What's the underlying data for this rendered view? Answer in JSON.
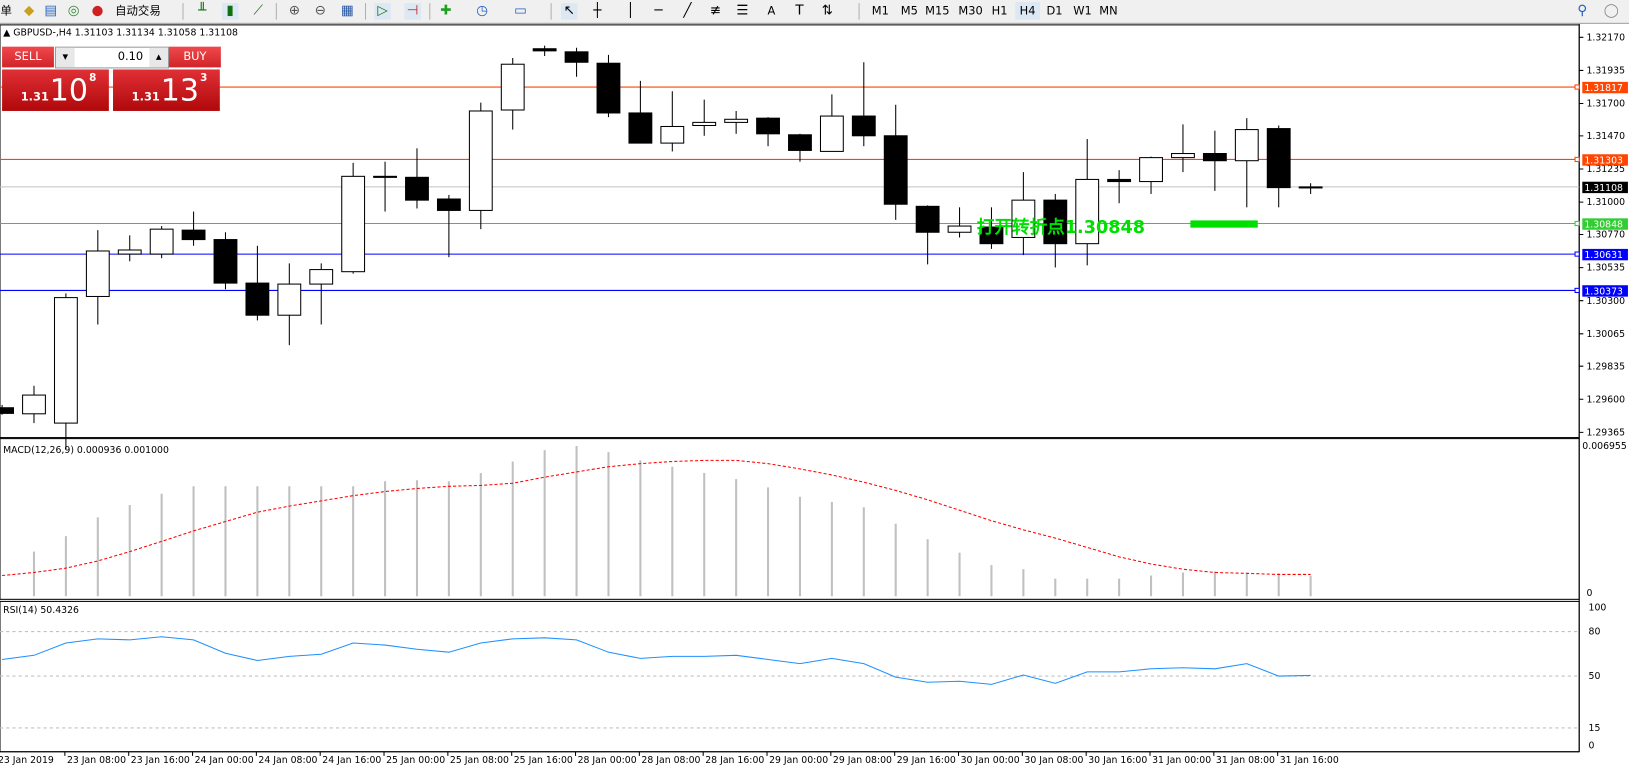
{
  "toolbar": {
    "left_cut_text": "单",
    "auto_trading": "自动交易",
    "timeframes": [
      "M1",
      "M5",
      "M15",
      "M30",
      "H1",
      "H4",
      "D1",
      "W1",
      "MN"
    ],
    "icons": [
      "profiles-icon",
      "navigator-icon",
      "signal-icon",
      "auto-trading-icon",
      "bar-chart-icon",
      "candlestick-icon",
      "line-chart-icon",
      "zoom-in-icon",
      "zoom-out-icon",
      "tile-windows-icon",
      "autoscroll-icon",
      "chart-shift-icon",
      "indicators-icon",
      "periods-icon",
      "templates-icon",
      "cursor-icon",
      "crosshair-icon",
      "vertical-line-icon",
      "horizontal-line-icon",
      "trendline-icon",
      "fibonacci-fan-icon",
      "fibonacci-icon",
      "text-icon",
      "text-label-icon",
      "arrows-icon",
      "search-icon",
      "chat-icon"
    ],
    "text_tool": "A"
  },
  "chart": {
    "symbol_header": "GBPUSD-,H4  1.31103 1.31134 1.31058 1.31108",
    "annotation": "打开转折点1.30848",
    "annotation_color": "#00e000",
    "bid_price": "1.31108"
  },
  "trade_panel": {
    "sell_label": "SELL",
    "buy_label": "BUY",
    "lot": "0.10",
    "sell_price": {
      "prefix": "1.31",
      "big": "10",
      "sup": "8"
    },
    "buy_price": {
      "prefix": "1.31",
      "big": "13",
      "sup": "3"
    }
  },
  "price_axis": {
    "ticks": [
      "1.32170",
      "1.31935",
      "1.31700",
      "1.31470",
      "1.31235",
      "1.31000",
      "1.30770",
      "1.30535",
      "1.30300",
      "1.30065",
      "1.29835",
      "1.29600",
      "1.29365"
    ]
  },
  "levels": [
    {
      "price": "1.31817",
      "color": "#ff4500"
    },
    {
      "price": "1.31303",
      "color": "#ff4500"
    },
    {
      "price": "1.30848",
      "color": "#32cd32"
    },
    {
      "price": "1.30631",
      "color": "#0000ff"
    },
    {
      "price": "1.30373",
      "color": "#0000ff"
    }
  ],
  "chart_data": [
    {
      "type": "candlestick",
      "title": "GBPUSD-,H4",
      "x": [
        "23 Jan 00:00",
        "23 Jan 04:00",
        "23 Jan 08:00",
        "23 Jan 12:00",
        "23 Jan 16:00",
        "23 Jan 20:00",
        "24 Jan 00:00",
        "24 Jan 04:00",
        "24 Jan 08:00",
        "24 Jan 12:00",
        "24 Jan 16:00",
        "24 Jan 20:00",
        "25 Jan 00:00",
        "25 Jan 04:00",
        "25 Jan 08:00",
        "25 Jan 12:00",
        "25 Jan 16:00",
        "25 Jan 20:00",
        "28 Jan 00:00",
        "28 Jan 04:00",
        "28 Jan 08:00",
        "28 Jan 12:00",
        "28 Jan 16:00",
        "28 Jan 20:00",
        "29 Jan 00:00",
        "29 Jan 04:00",
        "29 Jan 08:00",
        "29 Jan 12:00",
        "29 Jan 16:00",
        "29 Jan 20:00",
        "30 Jan 00:00",
        "30 Jan 04:00",
        "30 Jan 08:00",
        "30 Jan 12:00",
        "30 Jan 16:00",
        "30 Jan 20:00",
        "31 Jan 00:00",
        "31 Jan 04:00",
        "31 Jan 08:00",
        "31 Jan 12:00",
        "31 Jan 16:00",
        "31 Jan 20:00"
      ],
      "ohlc": [
        [
          1.2954,
          1.2956,
          1.2949,
          1.295
        ],
        [
          1.29497,
          1.29696,
          1.29431,
          1.2963
        ],
        [
          1.29431,
          1.30352,
          1.29247,
          1.30322
        ],
        [
          1.3033,
          1.30801,
          1.30131,
          1.30653
        ],
        [
          1.30631,
          1.30764,
          1.3058,
          1.3066
        ],
        [
          1.30631,
          1.3083,
          1.30602,
          1.30808
        ],
        [
          1.30801,
          1.30933,
          1.3069,
          1.30734
        ],
        [
          1.30734,
          1.30786,
          1.30381,
          1.30425
        ],
        [
          1.30425,
          1.3069,
          1.3016,
          1.30197
        ],
        [
          1.30197,
          1.30565,
          1.29984,
          1.30418
        ],
        [
          1.30418,
          1.30565,
          1.30131,
          1.30521
        ],
        [
          1.30506,
          1.31279,
          1.30492,
          1.31183
        ],
        [
          1.31183,
          1.31287,
          1.30933,
          1.31176
        ],
        [
          1.31176,
          1.31382,
          1.30955,
          1.31014
        ],
        [
          1.31022,
          1.31051,
          1.30609,
          1.30941
        ],
        [
          1.30941,
          1.31706,
          1.30808,
          1.31647
        ],
        [
          1.31654,
          1.32023,
          1.31515,
          1.31979
        ],
        [
          1.32089,
          1.32111,
          1.32037,
          1.32074
        ],
        [
          1.32067,
          1.32096,
          1.3189,
          1.31993
        ],
        [
          1.31986,
          1.32045,
          1.31603,
          1.31633
        ],
        [
          1.31633,
          1.31861,
          1.31419,
          1.31419
        ],
        [
          1.31419,
          1.31787,
          1.3136,
          1.31537
        ],
        [
          1.31544,
          1.31728,
          1.31471,
          1.31566
        ],
        [
          1.31566,
          1.31647,
          1.31485,
          1.31588
        ],
        [
          1.31596,
          1.31603,
          1.31397,
          1.31485
        ],
        [
          1.31478,
          1.31485,
          1.31287,
          1.31367
        ],
        [
          1.3136,
          1.31765,
          1.3136,
          1.31611
        ],
        [
          1.31611,
          1.31993,
          1.31397,
          1.31471
        ],
        [
          1.31471,
          1.31691,
          1.30874,
          1.30985
        ],
        [
          1.3097,
          1.30977,
          1.30558,
          1.30786
        ],
        [
          1.30786,
          1.30963,
          1.30749,
          1.3083
        ],
        [
          1.30823,
          1.30963,
          1.30668,
          1.30705
        ],
        [
          1.30749,
          1.31213,
          1.30624,
          1.31014
        ],
        [
          1.31014,
          1.31058,
          1.30536,
          1.30705
        ],
        [
          1.30705,
          1.31448,
          1.30551,
          1.31161
        ],
        [
          1.31161,
          1.31227,
          1.30992,
          1.31146
        ],
        [
          1.31146,
          1.31323,
          1.31058,
          1.31316
        ],
        [
          1.31316,
          1.31552,
          1.31213,
          1.31345
        ],
        [
          1.31345,
          1.31507,
          1.3108,
          1.31294
        ],
        [
          1.31294,
          1.31596,
          1.30963,
          1.31515
        ],
        [
          1.31522,
          1.31544,
          1.30963,
          1.31103
        ],
        [
          1.31103,
          1.31134,
          1.31058,
          1.31108
        ]
      ],
      "ylim": [
        1.29365,
        1.3217
      ],
      "x_tick_labels": [
        "23 Jan 2019",
        "23 Jan 08:00",
        "23 Jan 16:00",
        "24 Jan 00:00",
        "24 Jan 08:00",
        "24 Jan 16:00",
        "25 Jan 00:00",
        "25 Jan 08:00",
        "25 Jan 16:00",
        "28 Jan 00:00",
        "28 Jan 08:00",
        "28 Jan 16:00",
        "29 Jan 00:00",
        "29 Jan 08:00",
        "29 Jan 16:00",
        "30 Jan 00:00",
        "30 Jan 08:00",
        "30 Jan 16:00",
        "31 Jan 00:00",
        "31 Jan 08:00",
        "31 Jan 16:00"
      ]
    },
    {
      "type": "bar+line",
      "title": "MACD(12,26,9) 0.000936 0.001000",
      "series": [
        {
          "name": "MACD",
          "type": "bar",
          "color": "#c0c0c0",
          "values": [
            0,
            0.00205,
            0.00276,
            0.00362,
            0.00419,
            0.00471,
            0.00505,
            0.00505,
            0.00505,
            0.00505,
            0.00505,
            0.00505,
            0.00528,
            0.00533,
            0.00528,
            0.00566,
            0.00619,
            0.00671,
            0.0069,
            0.00662,
            0.00624,
            0.00595,
            0.00566,
            0.00538,
            0.005,
            0.00457,
            0.00433,
            0.00409,
            0.00333,
            0.00262,
            0.002,
            0.00143,
            0.00124,
            0.00081,
            0.00081,
            0.00081,
            0.00095,
            0.00109,
            0.00114,
            0.00109,
            0.00105,
            0.000936
          ]
        },
        {
          "name": "Signal",
          "type": "line",
          "color": "#ff0000",
          "values": [
            0.00095,
            0.00109,
            0.00129,
            0.00162,
            0.00205,
            0.00252,
            0.003,
            0.00343,
            0.00386,
            0.00414,
            0.00438,
            0.00462,
            0.00481,
            0.00495,
            0.00505,
            0.00509,
            0.00519,
            0.00547,
            0.00571,
            0.00595,
            0.00609,
            0.00619,
            0.00624,
            0.00624,
            0.00609,
            0.00585,
            0.00557,
            0.00524,
            0.00486,
            0.00443,
            0.00395,
            0.00347,
            0.00305,
            0.00267,
            0.00224,
            0.00181,
            0.00148,
            0.00124,
            0.00109,
            0.00105,
            0.001,
            0.001
          ]
        }
      ],
      "y_tick_labels": [
        "0.006955",
        "0"
      ],
      "ylim": [
        0,
        0.006955
      ]
    },
    {
      "type": "line",
      "title": "RSI(14) 50.4326",
      "series": [
        {
          "name": "RSI",
          "color": "#1e90ff",
          "values": [
            61.2,
            64,
            72.3,
            75.1,
            74.4,
            76.5,
            74.4,
            65.4,
            60.5,
            63.3,
            64.7,
            72.3,
            70.9,
            68.1,
            66.1,
            72.3,
            75.1,
            75.8,
            74.4,
            66.1,
            61.9,
            63.3,
            63.3,
            64,
            61.2,
            58.4,
            61.9,
            58.4,
            49.3,
            45.8,
            46.5,
            44.4,
            50.7,
            45.1,
            52.8,
            52.8,
            54.9,
            55.6,
            54.9,
            58.4,
            50,
            50.43
          ]
        }
      ],
      "levels": [
        80,
        50,
        15
      ],
      "y_tick_labels": [
        "100",
        "80",
        "50",
        "15",
        "0"
      ],
      "ylim": [
        0,
        100
      ]
    }
  ]
}
